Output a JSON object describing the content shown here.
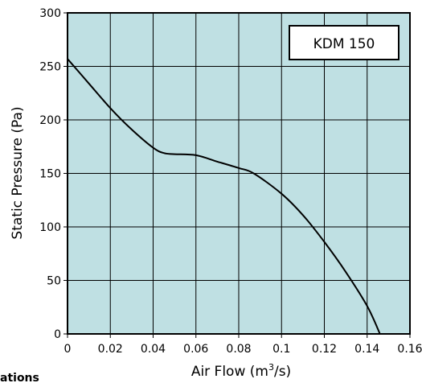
{
  "chart_data": {
    "type": "line",
    "title": "",
    "legend_label": "KDM 150",
    "legend_position": "top-right",
    "xlabel": {
      "text": "Air Flow (m",
      "superscript": "3",
      "suffix": "/s)"
    },
    "ylabel": "Static Pressure (Pa)",
    "xlim": [
      0,
      0.16
    ],
    "ylim": [
      0,
      300
    ],
    "x_ticks": [
      0,
      0.02,
      0.04,
      0.06,
      0.08,
      0.1,
      0.12,
      0.14,
      0.16
    ],
    "x_tick_labels": [
      "0",
      "0.02",
      "0.04",
      "0.06",
      "0.08",
      "0.1",
      "0.12",
      "0.14",
      "0.16"
    ],
    "y_ticks": [
      0,
      50,
      100,
      150,
      200,
      250,
      300
    ],
    "y_tick_labels": [
      "0",
      "50",
      "100",
      "150",
      "200",
      "250",
      "300"
    ],
    "grid": true,
    "series": [
      {
        "x": [
          0,
          0.01,
          0.02,
          0.03,
          0.04,
          0.045,
          0.05,
          0.06,
          0.07,
          0.08,
          0.087,
          0.1,
          0.11,
          0.12,
          0.13,
          0.14,
          0.146
        ],
        "y": [
          257,
          234,
          211,
          191,
          174,
          169,
          168,
          167,
          161,
          155,
          150,
          131,
          111,
          86,
          58,
          26,
          0
        ]
      }
    ],
    "colors": {
      "plot_background": "#bfe0e3",
      "grid": "#000000",
      "line": "#000000",
      "legend_background": "#ffffff"
    }
  },
  "cutoff_text": "ations"
}
